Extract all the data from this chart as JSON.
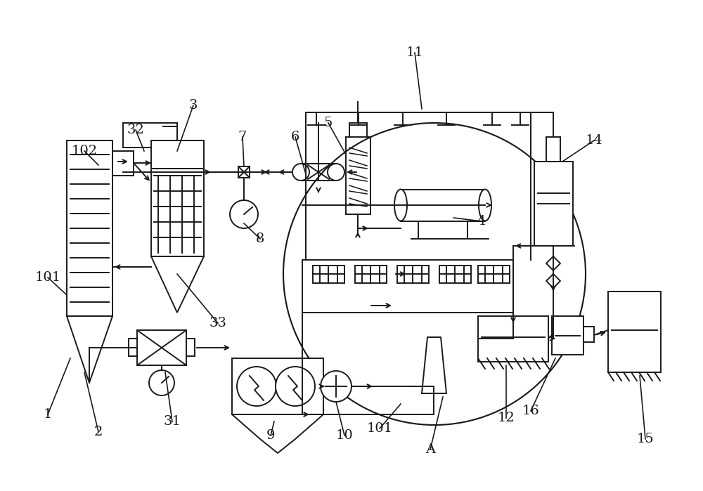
{
  "bg_color": "#ffffff",
  "lc": "#1a1a1a",
  "lw": 1.4,
  "fs": 14
}
